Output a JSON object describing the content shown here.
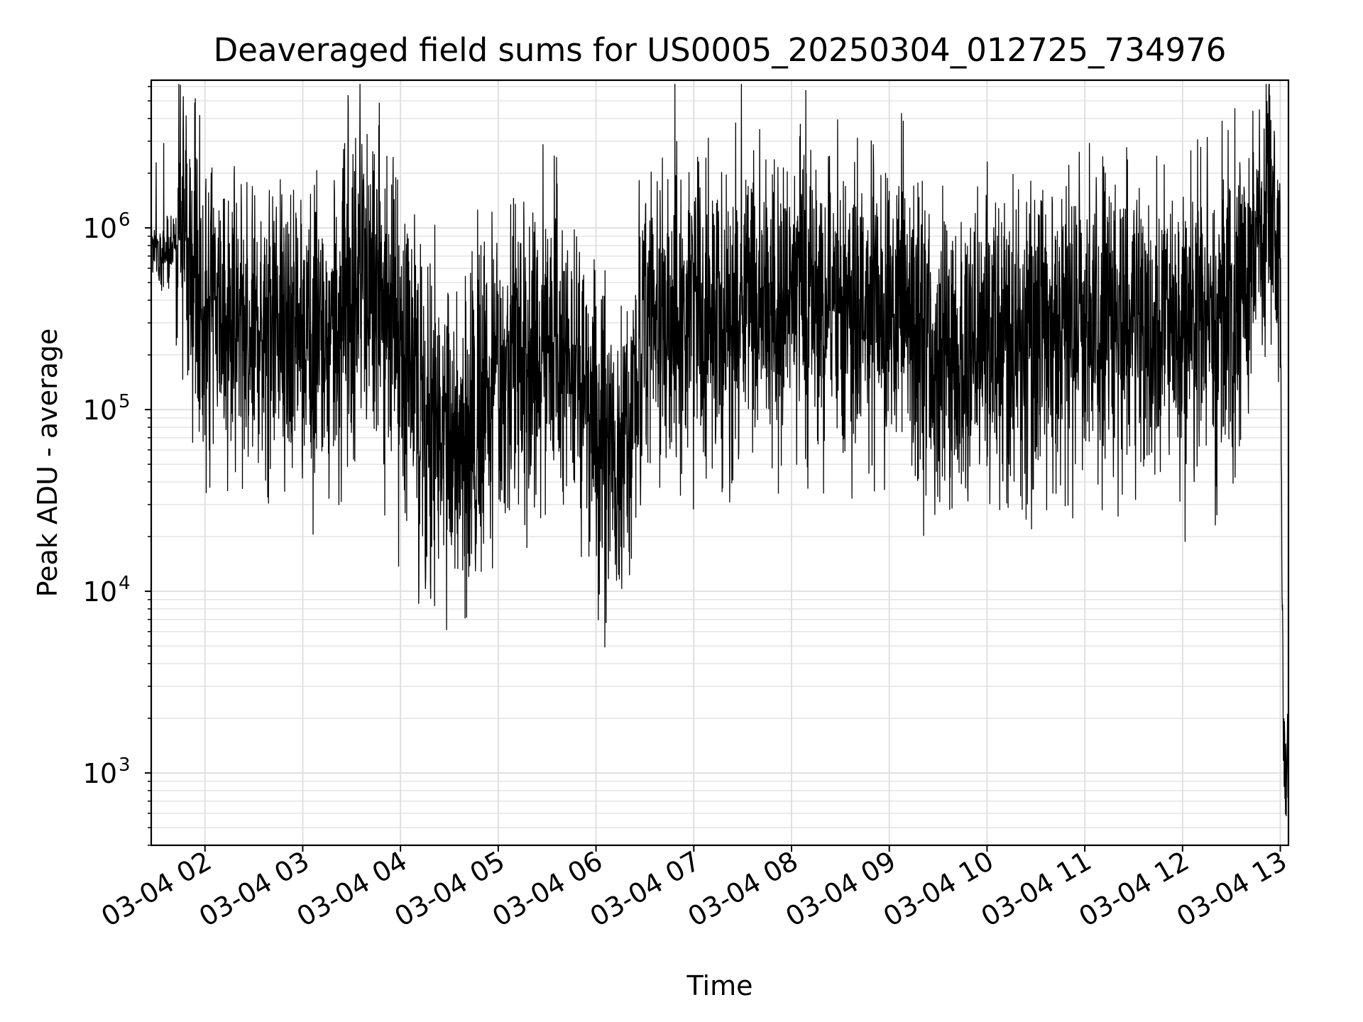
{
  "chart_data": {
    "type": "line",
    "title": "Deaveraged field sums for US0005_20250304_012725_734976",
    "xlabel": "Time",
    "ylabel": "Peak ADU - average",
    "yscale": "log",
    "ylim": [
      400,
      6500000
    ],
    "xlim": [
      "2025-03-04 01:27",
      "2025-03-04 13:05"
    ],
    "grid": "major and minor",
    "legend": "none",
    "line_color": "#000000",
    "x_ticks": [
      "2025-03-04 02:00",
      "2025-03-04 03:00",
      "2025-03-04 04:00",
      "2025-03-04 05:00",
      "2025-03-04 06:00",
      "2025-03-04 07:00",
      "2025-03-04 08:00",
      "2025-03-04 09:00",
      "2025-03-04 10:00",
      "2025-03-04 11:00",
      "2025-03-04 12:00",
      "2025-03-04 13:00"
    ],
    "x_tick_labels": [
      "03-04 02",
      "03-04 03",
      "03-04 04",
      "03-04 05",
      "03-04 06",
      "03-04 07",
      "03-04 08",
      "03-04 09",
      "03-04 10",
      "03-04 11",
      "03-04 12",
      "03-04 13"
    ],
    "y_ticks": [
      1000,
      10000,
      100000,
      1000000
    ],
    "y_tick_labels": [
      {
        "base": "10",
        "exp": "3"
      },
      {
        "base": "10",
        "exp": "4"
      },
      {
        "base": "10",
        "exp": "5"
      },
      {
        "base": "10",
        "exp": "6"
      }
    ],
    "series": [
      {
        "x": [
          "2025-03-04 01:27",
          "2025-03-04 01:40",
          "2025-03-04 01:43",
          "2025-03-04 01:50",
          "2025-03-04 02:00",
          "2025-03-04 02:30",
          "2025-03-04 03:00",
          "2025-03-04 03:20",
          "2025-03-04 03:35",
          "2025-03-04 04:00",
          "2025-03-04 04:15",
          "2025-03-04 04:40",
          "2025-03-04 05:00",
          "2025-03-04 05:30",
          "2025-03-04 05:50",
          "2025-03-04 06:05",
          "2025-03-04 06:15",
          "2025-03-04 06:30",
          "2025-03-04 07:00",
          "2025-03-04 07:30",
          "2025-03-04 08:00",
          "2025-03-04 08:20",
          "2025-03-04 09:00",
          "2025-03-04 09:40",
          "2025-03-04 10:00",
          "2025-03-04 10:30",
          "2025-03-04 11:00",
          "2025-03-04 11:30",
          "2025-03-04 12:00",
          "2025-03-04 12:30",
          "2025-03-04 12:55",
          "2025-03-04 13:00",
          "2025-03-04 13:02",
          "2025-03-04 13:05"
        ],
        "y": [
          700000,
          750000,
          1100000,
          700000,
          300000,
          280000,
          250000,
          220000,
          800000,
          200000,
          80000,
          70000,
          150000,
          220000,
          200000,
          60000,
          50000,
          300000,
          320000,
          350000,
          380000,
          420000,
          350000,
          200000,
          250000,
          250000,
          300000,
          300000,
          250000,
          300000,
          1300000,
          400000,
          900,
          1500
        ]
      }
    ]
  }
}
